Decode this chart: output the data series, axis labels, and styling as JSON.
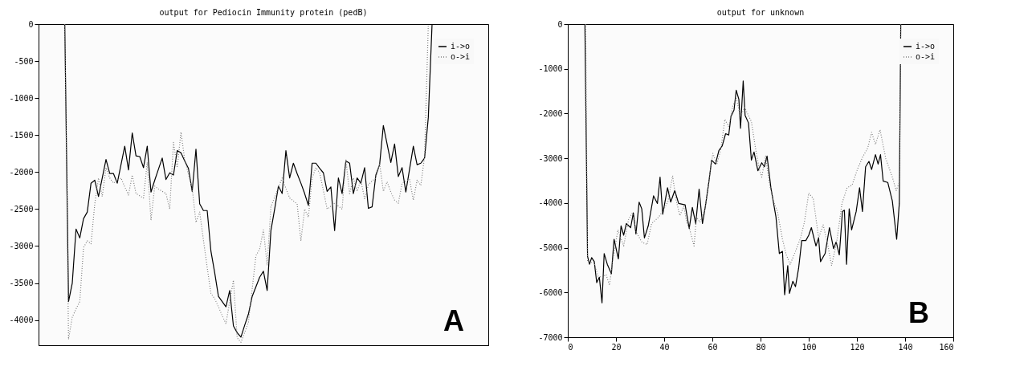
{
  "chart_data": [
    {
      "type": "line",
      "title": "output for Pediocin Immunity protein (pedB)",
      "categories": [
        null,
        null,
        null,
        null,
        null,
        null,
        null,
        null,
        null,
        null,
        null,
        null,
        null,
        null,
        null,
        null,
        null,
        null,
        null,
        null,
        null,
        null,
        null,
        null,
        null,
        null,
        null,
        null,
        null,
        null,
        null,
        null,
        null,
        null,
        null,
        null,
        null,
        null,
        null,
        null,
        null,
        null,
        null,
        null,
        null,
        null,
        null,
        null,
        null,
        null,
        null,
        null,
        null,
        null,
        null,
        null,
        null,
        null,
        null,
        null,
        null,
        null,
        null,
        null,
        null,
        null,
        null,
        null,
        null,
        null,
        null,
        null,
        null,
        null,
        null,
        null,
        null,
        null,
        null,
        null,
        null,
        null,
        null,
        null,
        null,
        null,
        null,
        null,
        null,
        null,
        null,
        null,
        null,
        null,
        null,
        null,
        null,
        null,
        null,
        null,
        null,
        null,
        null,
        null,
        null,
        null,
        null,
        null,
        null,
        null,
        null,
        null,
        null,
        null,
        null,
        null,
        null,
        null,
        null,
        null,
        null
      ],
      "ylim": [
        -4340,
        0
      ],
      "yticks": [
        0,
        -500,
        -1000,
        -1500,
        -2000,
        -2500,
        -3000,
        -3500,
        -4000
      ],
      "tick_labels": "y",
      "grid": false,
      "legend": "top right",
      "annotations": [
        "A"
      ],
      "series": [
        {
          "name": "i->o",
          "color": "#000000",
          "line_style": "solid",
          "values": [
            null,
            null,
            null,
            null,
            null,
            null,
            null,
            0,
            -3750,
            -3500,
            -2770,
            -2890,
            -2630,
            -2540,
            -2150,
            -2110,
            -2330,
            -2080,
            -1830,
            -2020,
            -2020,
            -2150,
            -1900,
            -1650,
            -1970,
            -1470,
            -1780,
            -1790,
            -1940,
            -1650,
            -2270,
            -2110,
            -1960,
            -1810,
            -2100,
            -2010,
            -2040,
            -1710,
            -1740,
            -1850,
            -1950,
            -2260,
            -1690,
            -2430,
            -2520,
            -2520,
            -3070,
            -3360,
            -3680,
            -3750,
            -3820,
            -3600,
            -4080,
            -4170,
            -4230,
            -4070,
            -3920,
            -3680,
            -3550,
            -3420,
            -3340,
            -3600,
            -2790,
            -2500,
            -2190,
            -2290,
            -1710,
            -2080,
            -1880,
            -2020,
            -2150,
            -2290,
            -2450,
            -1880,
            -1880,
            -1950,
            -2010,
            -2260,
            -2200,
            -2790,
            -2080,
            -2290,
            -1850,
            -1880,
            -2290,
            -2080,
            -2150,
            -1940,
            -2490,
            -2470,
            -2040,
            -1900,
            -1370,
            -1620,
            -1870,
            -1620,
            -2060,
            -1940,
            -2270,
            -1960,
            -1650,
            -1900,
            -1880,
            -1810,
            -1260,
            0,
            null,
            null,
            null,
            null,
            null,
            null,
            null,
            null,
            null,
            null,
            null,
            null,
            null,
            null,
            null
          ]
        },
        {
          "name": "o->i",
          "color": "#808080",
          "line_style": "dotted",
          "values": [
            null,
            null,
            null,
            null,
            null,
            null,
            null,
            0,
            -4260,
            -3960,
            -3850,
            -3750,
            -3020,
            -2930,
            -2970,
            -2430,
            -2080,
            -2330,
            -1940,
            -2080,
            -2150,
            -2110,
            -2080,
            -2200,
            -2310,
            -2040,
            -2290,
            -2320,
            -2350,
            -1870,
            -2650,
            -2190,
            -2230,
            -2260,
            -2290,
            -2500,
            -1600,
            -1940,
            -1460,
            -1830,
            -2030,
            -2220,
            -2680,
            -2540,
            -2920,
            -3290,
            -3640,
            -3710,
            -3820,
            -3940,
            -4050,
            -3750,
            -3460,
            -4240,
            -4300,
            -4170,
            -4030,
            -3580,
            -3130,
            -3040,
            -2780,
            -3260,
            -2470,
            -2340,
            -2210,
            -2080,
            -2220,
            -2350,
            -2390,
            -2430,
            -2930,
            -2500,
            -2610,
            -2080,
            -1940,
            -2010,
            -2250,
            -2500,
            -2460,
            -2420,
            -2460,
            -2500,
            -1830,
            -2290,
            -2080,
            -2260,
            -2110,
            -2360,
            -2170,
            -2120,
            -2080,
            -1880,
            -2260,
            -2130,
            -2270,
            -2380,
            -2420,
            -2150,
            -2120,
            -2100,
            -2380,
            -2110,
            -2180,
            -1790,
            0,
            null,
            null,
            null,
            null,
            null,
            null,
            null,
            null,
            null,
            null,
            null,
            null,
            null,
            null,
            null,
            null
          ]
        }
      ]
    },
    {
      "type": "line",
      "title": "output for unknown",
      "xlim": [
        0,
        160
      ],
      "xticks": [
        0,
        20,
        40,
        60,
        80,
        100,
        120,
        140,
        160
      ],
      "ylim": [
        -7000,
        0
      ],
      "yticks": [
        0,
        -1000,
        -2000,
        -3000,
        -4000,
        -5000,
        -6000,
        -7000
      ],
      "grid": false,
      "legend": "top right",
      "annotations": [
        "B"
      ],
      "series": [
        {
          "name": "i->o",
          "color": "#000000",
          "line_style": "solid",
          "x": [
            7.1,
            8.2,
            9,
            9.9,
            11,
            12,
            13.1,
            14.2,
            15.1,
            16.4,
            18.1,
            19.2,
            21,
            22.1,
            23.2,
            24.3,
            26.1,
            27.2,
            28.3,
            29.6,
            30.7,
            31.8,
            33.4,
            35.6,
            37.2,
            38.3,
            39.4,
            41.4,
            42.7,
            44.4,
            46,
            48.7,
            50.4,
            51.7,
            53.1,
            54.5,
            55.9,
            57.2,
            58.6,
            59.7,
            61.3,
            62.7,
            64.1,
            65.5,
            66.8,
            67.7,
            69,
            69.9,
            71,
            71.7,
            72.8,
            73.6,
            75,
            76.2,
            77.3,
            78.9,
            80.5,
            81.6,
            82.7,
            84.3,
            86.4,
            87.8,
            89.1,
            90,
            91.3,
            92,
            93.4,
            94.5,
            95.8,
            97.1,
            98.8,
            100,
            101.1,
            103,
            104.1,
            104.9,
            106.8,
            108.6,
            110.3,
            111.4,
            112.7,
            114,
            114.8,
            115.7,
            116.8,
            117.8,
            119.7,
            121.1,
            122.3,
            123.6,
            125,
            126.1,
            127.7,
            128.8,
            129.8,
            130.9,
            132.8,
            134.7,
            136.5,
            137.6,
            138.2
          ],
          "values": [
            0,
            -5190,
            -5370,
            -5220,
            -5310,
            -5780,
            -5660,
            -6230,
            -5130,
            -5370,
            -5580,
            -4810,
            -5250,
            -4510,
            -4720,
            -4460,
            -4550,
            -4220,
            -4690,
            -3980,
            -4130,
            -4780,
            -4510,
            -3840,
            -4010,
            -3420,
            -4250,
            -3660,
            -3980,
            -3720,
            -4010,
            -4040,
            -4570,
            -4100,
            -4460,
            -3690,
            -4460,
            -4040,
            -3510,
            -3040,
            -3130,
            -2830,
            -2720,
            -2450,
            -2480,
            -2070,
            -1920,
            -1480,
            -1680,
            -2330,
            -1270,
            -2040,
            -2210,
            -3040,
            -2860,
            -3280,
            -3100,
            -3190,
            -2950,
            -3660,
            -4310,
            -5130,
            -5080,
            -6050,
            -5400,
            -6020,
            -5750,
            -5870,
            -5460,
            -4840,
            -4840,
            -4720,
            -4550,
            -4960,
            -4780,
            -5310,
            -5130,
            -4550,
            -5020,
            -4870,
            -5160,
            -4190,
            -4160,
            -5370,
            -4130,
            -4600,
            -4190,
            -3660,
            -4190,
            -3190,
            -3070,
            -3250,
            -2920,
            -3130,
            -2920,
            -3510,
            -3540,
            -3950,
            -4810,
            -4010,
            0
          ]
        },
        {
          "name": "o->i",
          "color": "#808080",
          "line_style": "dotted",
          "x": [
            7.4,
            8.2,
            11,
            12.6,
            14.2,
            15.9,
            17.3,
            18.6,
            20.8,
            23.2,
            25.2,
            26.8,
            28.5,
            30.7,
            32.9,
            34.8,
            37.8,
            40,
            41.6,
            43.5,
            44.9,
            46.5,
            48.2,
            49.3,
            50.4,
            52.4,
            53.4,
            54.8,
            57,
            58.6,
            60.2,
            61.9,
            63.5,
            65.2,
            66.8,
            68.5,
            69.9,
            71.7,
            73.4,
            75.2,
            76.2,
            77.9,
            79.5,
            80.5,
            82.1,
            83.8,
            85.4,
            87,
            89.1,
            90.7,
            92.3,
            94.5,
            96.6,
            98.2,
            100,
            101.9,
            104.1,
            106,
            107.9,
            109.5,
            111.6,
            113.8,
            115.9,
            118,
            120.2,
            122.3,
            124.5,
            126.1,
            127.7,
            129.6,
            132,
            134.7,
            136.3,
            137.6,
            138.2
          ],
          "values": [
            0,
            -5310,
            -5340,
            -5640,
            -5660,
            -5600,
            -5840,
            -5310,
            -4600,
            -4960,
            -4370,
            -4220,
            -4660,
            -4870,
            -4930,
            -4460,
            -4310,
            -4130,
            -3960,
            -3390,
            -3920,
            -4280,
            -4070,
            -4430,
            -4550,
            -4960,
            -4310,
            -4430,
            -4130,
            -3480,
            -2890,
            -3130,
            -2800,
            -2130,
            -2300,
            -1830,
            -1650,
            -2070,
            -1860,
            -2070,
            -2180,
            -2770,
            -3250,
            -3420,
            -2950,
            -3600,
            -3960,
            -4190,
            -4810,
            -5160,
            -5370,
            -5080,
            -4780,
            -4430,
            -3780,
            -3900,
            -4780,
            -4490,
            -4930,
            -5400,
            -4870,
            -4010,
            -3660,
            -3600,
            -3250,
            -2980,
            -2770,
            -2420,
            -2690,
            -2360,
            -3010,
            -3420,
            -3720,
            -3540,
            0
          ]
        }
      ]
    }
  ]
}
